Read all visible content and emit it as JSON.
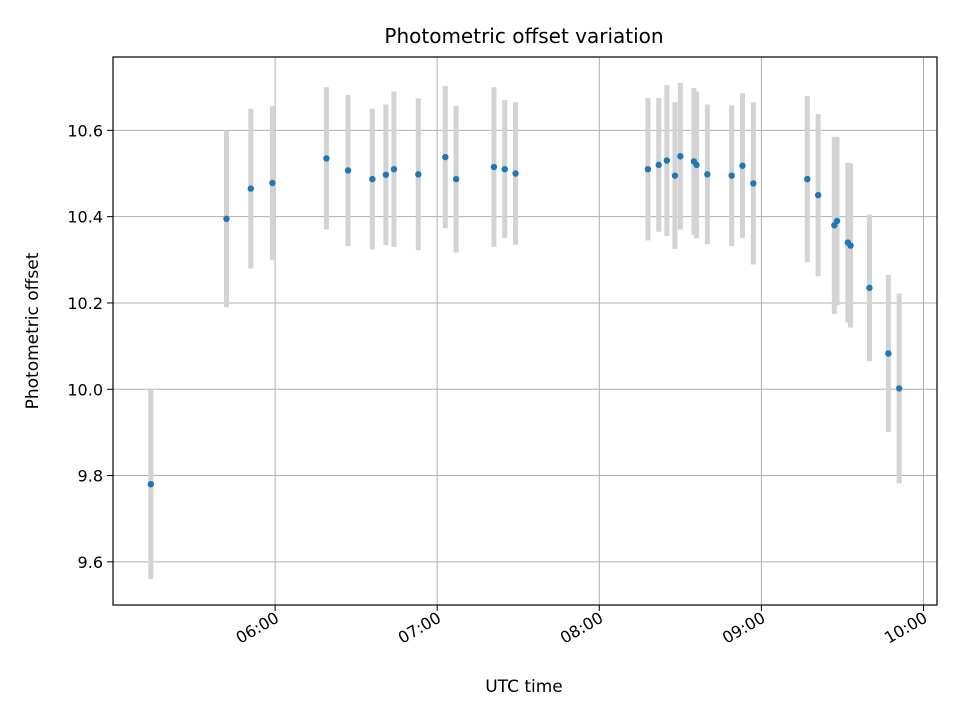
{
  "chart_data": {
    "type": "scatter",
    "title": "Photometric offset variation",
    "xlabel": "UTC time",
    "ylabel": "Photometric offset",
    "x_is_time": true,
    "xlim": [
      "05:00",
      "10:05"
    ],
    "ylim": [
      9.5,
      10.77
    ],
    "x_ticks": [
      "06:00",
      "07:00",
      "08:00",
      "09:00",
      "10:00"
    ],
    "y_ticks": [
      9.6,
      9.8,
      10.0,
      10.2,
      10.4,
      10.6
    ],
    "grid": true,
    "colors": {
      "point": "#1f77b4",
      "errorbar": "#d3d3d3",
      "grid": "#b0b0b0"
    },
    "points": [
      {
        "t": "05:14",
        "y": 9.78,
        "err": 0.22
      },
      {
        "t": "05:42",
        "y": 10.395,
        "err": 0.205
      },
      {
        "t": "05:51",
        "y": 10.465,
        "err": 0.185
      },
      {
        "t": "05:59",
        "y": 10.478,
        "err": 0.178
      },
      {
        "t": "06:19",
        "y": 10.535,
        "err": 0.165
      },
      {
        "t": "06:27",
        "y": 10.507,
        "err": 0.175
      },
      {
        "t": "06:36",
        "y": 10.487,
        "err": 0.163
      },
      {
        "t": "06:41",
        "y": 10.497,
        "err": 0.163
      },
      {
        "t": "06:44",
        "y": 10.51,
        "err": 0.18
      },
      {
        "t": "06:53",
        "y": 10.498,
        "err": 0.176
      },
      {
        "t": "07:03",
        "y": 10.538,
        "err": 0.165
      },
      {
        "t": "07:07",
        "y": 10.487,
        "err": 0.17
      },
      {
        "t": "07:21",
        "y": 10.515,
        "err": 0.185
      },
      {
        "t": "07:25",
        "y": 10.51,
        "err": 0.16
      },
      {
        "t": "07:29",
        "y": 10.5,
        "err": 0.165
      },
      {
        "t": "08:18",
        "y": 10.51,
        "err": 0.165
      },
      {
        "t": "08:22",
        "y": 10.52,
        "err": 0.155
      },
      {
        "t": "08:25",
        "y": 10.53,
        "err": 0.175
      },
      {
        "t": "08:28",
        "y": 10.495,
        "err": 0.17
      },
      {
        "t": "08:30",
        "y": 10.54,
        "err": 0.17
      },
      {
        "t": "08:35",
        "y": 10.528,
        "err": 0.17
      },
      {
        "t": "08:36",
        "y": 10.52,
        "err": 0.17
      },
      {
        "t": "08:40",
        "y": 10.498,
        "err": 0.162
      },
      {
        "t": "08:49",
        "y": 10.495,
        "err": 0.163
      },
      {
        "t": "08:53",
        "y": 10.518,
        "err": 0.168
      },
      {
        "t": "08:57",
        "y": 10.477,
        "err": 0.188
      },
      {
        "t": "09:17",
        "y": 10.487,
        "err": 0.193
      },
      {
        "t": "09:21",
        "y": 10.45,
        "err": 0.188
      },
      {
        "t": "09:27",
        "y": 10.38,
        "err": 0.205
      },
      {
        "t": "09:28",
        "y": 10.39,
        "err": 0.195
      },
      {
        "t": "09:32",
        "y": 10.34,
        "err": 0.185
      },
      {
        "t": "09:33",
        "y": 10.333,
        "err": 0.19
      },
      {
        "t": "09:40",
        "y": 10.235,
        "err": 0.17
      },
      {
        "t": "09:47",
        "y": 10.083,
        "err": 0.182
      },
      {
        "t": "09:51",
        "y": 10.002,
        "err": 0.22
      }
    ]
  }
}
